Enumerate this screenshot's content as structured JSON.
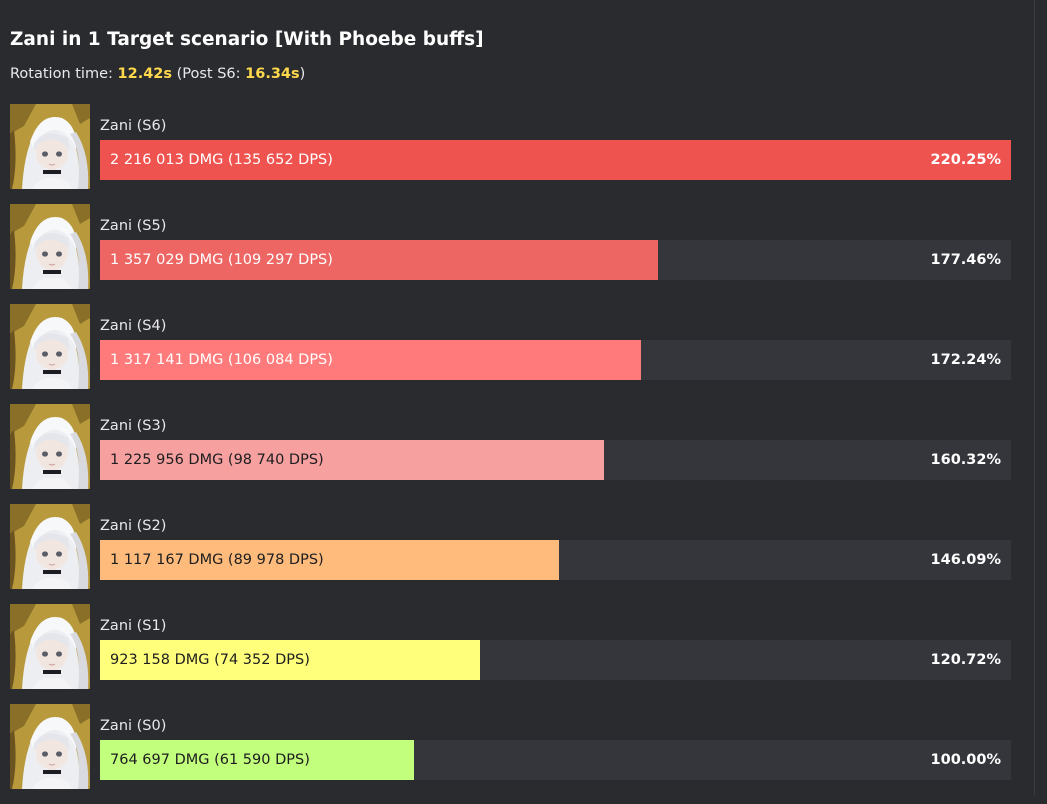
{
  "title": "Zani in 1 Target scenario [With Phoebe buffs]",
  "rotation": {
    "prefix": "Rotation time: ",
    "time": "12.42s",
    "post_prefix": " (Post S6: ",
    "post_time": "16.34s",
    "suffix": ")"
  },
  "colors": {
    "background": "#2a2b2f",
    "track": "#35363c",
    "highlight": "#ffd84c"
  },
  "chart_data": {
    "type": "bar",
    "orientation": "horizontal",
    "title": "Zani in 1 Target scenario [With Phoebe buffs]",
    "categories": [
      "Zani (S6)",
      "Zani (S5)",
      "Zani (S4)",
      "Zani (S3)",
      "Zani (S2)",
      "Zani (S1)",
      "Zani (S0)"
    ],
    "values": [
      2216013,
      1357029,
      1317141,
      1225956,
      1117167,
      923158,
      764697
    ],
    "xlim": [
      0,
      2216013
    ],
    "rows": [
      {
        "label": "Zani (S6)",
        "value": 2216013,
        "dmg_text": "2 216 013 DMG (135 652 DPS)",
        "percent": "220.25%",
        "color": "#ef5350",
        "text_color": "#ffffff"
      },
      {
        "label": "Zani (S5)",
        "value": 1357029,
        "dmg_text": "1 357 029 DMG (109 297 DPS)",
        "percent": "177.46%",
        "color": "#ed6663",
        "text_color": "#ffffff"
      },
      {
        "label": "Zani (S4)",
        "value": 1317141,
        "dmg_text": "1 317 141 DMG (106 084 DPS)",
        "percent": "172.24%",
        "color": "#ff7b7b",
        "text_color": "#ffffff"
      },
      {
        "label": "Zani (S3)",
        "value": 1225956,
        "dmg_text": "1 225 956 DMG (98 740 DPS)",
        "percent": "160.32%",
        "color": "#f6a1a0",
        "text_color": "#1d1d1f"
      },
      {
        "label": "Zani (S2)",
        "value": 1117167,
        "dmg_text": "1 117 167 DMG (89 978 DPS)",
        "percent": "146.09%",
        "color": "#ffbb7c",
        "text_color": "#1d1d1f"
      },
      {
        "label": "Zani (S1)",
        "value": 923158,
        "dmg_text": "923 158 DMG (74 352 DPS)",
        "percent": "120.72%",
        "color": "#ffff7c",
        "text_color": "#1d1d1f"
      },
      {
        "label": "Zani (S0)",
        "value": 764697,
        "dmg_text": "764 697 DMG (61 590 DPS)",
        "percent": "100.00%",
        "color": "#c2ff7c",
        "text_color": "#1d1d1f"
      }
    ],
    "avatar": "zani-portrait"
  }
}
